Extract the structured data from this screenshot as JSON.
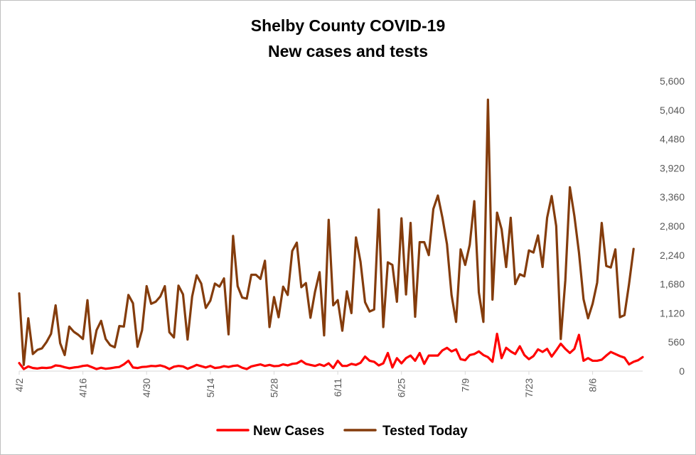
{
  "chart_data": {
    "type": "line",
    "title": "Shelby County COVID-19",
    "subtitle": "New cases and tests",
    "ylim": [
      0,
      5600
    ],
    "yticks": [
      "0",
      "560",
      "1,120",
      "1,680",
      "2,240",
      "2,800",
      "3,360",
      "3,920",
      "4,480",
      "5,040",
      "5,600"
    ],
    "x_tick_labels": [
      "4/2",
      "4/16",
      "4/30",
      "5/14",
      "5/28",
      "6/11",
      "6/25",
      "7/9",
      "7/23",
      "8/6"
    ],
    "x_start": "4/2",
    "grid": false,
    "legend_position": "bottom",
    "colors": {
      "new_cases": "#ff0000",
      "tested_today": "#843c0c"
    },
    "series": [
      {
        "name": "New Cases",
        "values": [
          155,
          40,
          90,
          60,
          50,
          65,
          60,
          70,
          110,
          100,
          75,
          55,
          70,
          80,
          100,
          110,
          75,
          40,
          65,
          45,
          55,
          70,
          80,
          130,
          200,
          70,
          60,
          80,
          85,
          100,
          95,
          110,
          85,
          40,
          85,
          100,
          90,
          45,
          80,
          120,
          95,
          70,
          100,
          60,
          70,
          95,
          80,
          100,
          110,
          65,
          40,
          90,
          110,
          130,
          100,
          120,
          95,
          100,
          130,
          110,
          140,
          150,
          200,
          140,
          120,
          100,
          130,
          100,
          150,
          60,
          200,
          100,
          100,
          140,
          120,
          160,
          280,
          200,
          180,
          110,
          150,
          350,
          70,
          250,
          150,
          250,
          300,
          200,
          350,
          140,
          300,
          300,
          300,
          400,
          450,
          380,
          420,
          230,
          210,
          310,
          330,
          380,
          310,
          270,
          180,
          720,
          250,
          450,
          380,
          330,
          480,
          310,
          230,
          290,
          420,
          370,
          430,
          280,
          400,
          530,
          430,
          350,
          430,
          700,
          200,
          250,
          200,
          200,
          220,
          300,
          370,
          330,
          290,
          260,
          130,
          180,
          210,
          270
        ]
      },
      {
        "name": "Tested Today",
        "values": [
          1500,
          120,
          1020,
          330,
          410,
          440,
          560,
          720,
          1270,
          540,
          310,
          860,
          760,
          700,
          620,
          1370,
          340,
          790,
          970,
          620,
          500,
          460,
          870,
          860,
          1470,
          1310,
          470,
          790,
          1640,
          1300,
          1340,
          1440,
          1640,
          750,
          650,
          1650,
          1480,
          610,
          1440,
          1850,
          1690,
          1220,
          1360,
          1690,
          1630,
          1790,
          710,
          2610,
          1640,
          1420,
          1400,
          1860,
          1860,
          1780,
          2130,
          850,
          1430,
          1040,
          1630,
          1470,
          2320,
          2480,
          1620,
          1700,
          1030,
          1530,
          1910,
          690,
          2920,
          1270,
          1370,
          780,
          1540,
          1120,
          2580,
          2110,
          1330,
          1150,
          1190,
          3120,
          850,
          2100,
          2050,
          1340,
          2950,
          1480,
          2860,
          1050,
          2490,
          2490,
          2240,
          3130,
          3390,
          2960,
          2450,
          1470,
          950,
          2350,
          2050,
          2440,
          3280,
          1520,
          950,
          5240,
          1380,
          3060,
          2740,
          2010,
          2960,
          1680,
          1870,
          1830,
          2330,
          2290,
          2620,
          2010,
          2960,
          3380,
          2800,
          620,
          1750,
          3550,
          2990,
          2290,
          1390,
          1020,
          1300,
          1710,
          2860,
          2030,
          2000,
          2350,
          1040,
          1080,
          1680,
          2360
        ]
      }
    ]
  }
}
